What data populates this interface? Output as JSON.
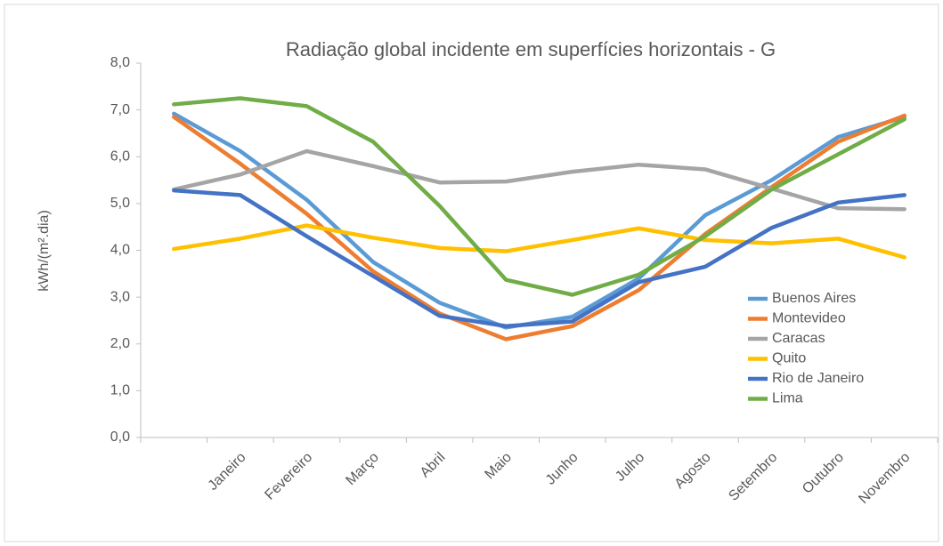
{
  "chart_data": {
    "type": "line",
    "title": "Radiação global incidente em superfícies horizontais  - G",
    "y_label": "kWh/(m².dia)",
    "categories": [
      null,
      "Janeiro",
      "Fevereiro",
      "Março",
      "Abril",
      "Maio",
      "Junho",
      "Julho",
      "Agosto",
      "Setembro",
      "Outubro",
      "Novembro"
    ],
    "series": [
      {
        "name": "Buenos Aires",
        "color": "#5b9bd5",
        "values": [
          6.92,
          6.12,
          5.08,
          3.75,
          2.88,
          2.35,
          2.58,
          3.4,
          4.75,
          5.5,
          6.42,
          6.85
        ]
      },
      {
        "name": "Montevideo",
        "color": "#ed7d31",
        "values": [
          6.85,
          5.85,
          4.78,
          3.55,
          2.65,
          2.1,
          2.38,
          3.15,
          4.35,
          5.35,
          6.32,
          6.88
        ]
      },
      {
        "name": "Caracas",
        "color": "#a5a5a5",
        "values": [
          5.3,
          5.62,
          6.12,
          5.8,
          5.45,
          5.47,
          5.68,
          5.83,
          5.73,
          5.32,
          4.9,
          4.88
        ]
      },
      {
        "name": "Quito",
        "color": "#ffc000",
        "values": [
          4.03,
          4.25,
          4.53,
          4.27,
          4.05,
          3.98,
          4.22,
          4.47,
          4.22,
          4.15,
          4.25,
          3.85
        ]
      },
      {
        "name": "Rio de Janeiro",
        "color": "#4472c4",
        "values": [
          5.28,
          5.18,
          4.3,
          3.45,
          2.6,
          2.38,
          2.48,
          3.32,
          3.65,
          4.48,
          5.02,
          5.18
        ]
      },
      {
        "name": "Lima",
        "color": "#70ad47",
        "values": [
          7.12,
          7.25,
          7.08,
          6.32,
          4.95,
          3.37,
          3.05,
          3.48,
          4.3,
          5.3,
          6.05,
          6.8
        ]
      }
    ],
    "ylim": [
      0,
      8
    ],
    "yticks": [
      {
        "value": 0,
        "label": "0,0"
      },
      {
        "value": 1,
        "label": "1,0"
      },
      {
        "value": 2,
        "label": "2,0"
      },
      {
        "value": 3,
        "label": "3,0"
      },
      {
        "value": 4,
        "label": "4,0"
      },
      {
        "value": 5,
        "label": "5,0"
      },
      {
        "value": 6,
        "label": "6,0"
      },
      {
        "value": 7,
        "label": "7,0"
      },
      {
        "value": 8,
        "label": "8,0"
      }
    ],
    "legend": "lower right"
  }
}
